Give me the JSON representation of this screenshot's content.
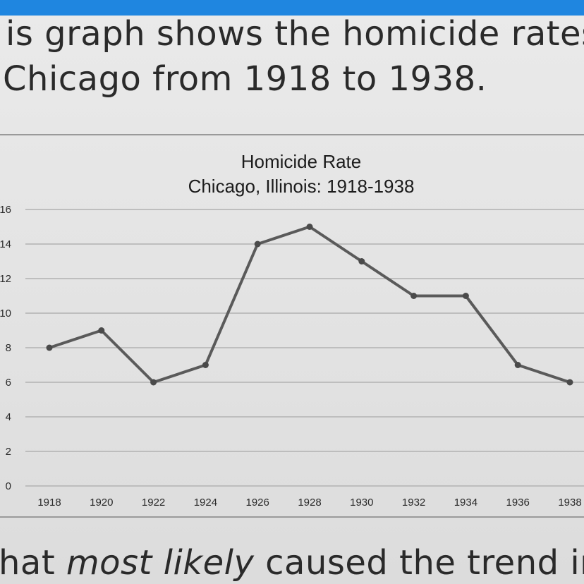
{
  "question": {
    "line1": "is graph shows the homicide rates",
    "line2": "Chicago from 1918 to 1938.",
    "line3_prefix": "hat ",
    "line3_emphasis": "most likely",
    "line3_suffix": " caused the trend in"
  },
  "colors": {
    "topbar": "#1f86e0",
    "line": "#5a5a5a",
    "marker": "#4a4a4a",
    "grid": "#b2b2b2"
  },
  "chart_data": {
    "type": "line",
    "title": "Homicide Rate",
    "subtitle": "Chicago, Illinois: 1918-1938",
    "x": [
      "1918",
      "1920",
      "1922",
      "1924",
      "1926",
      "1928",
      "1930",
      "1932",
      "1934",
      "1936",
      "1938"
    ],
    "values": [
      8,
      9,
      6,
      7,
      14,
      15,
      13,
      11,
      11,
      7,
      6
    ],
    "xlabel": "",
    "ylabel": "",
    "ylim": [
      0,
      16
    ],
    "yticks": [
      "0",
      "2",
      "4",
      "6",
      "8",
      "10",
      "12",
      "14",
      "16"
    ],
    "grid": true,
    "legend": "none"
  }
}
